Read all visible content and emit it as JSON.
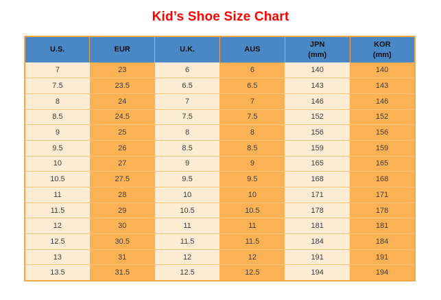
{
  "title": "Kid’s Shoe Size Chart",
  "chart_data": {
    "type": "table",
    "title": "Kid’s Shoe Size Chart",
    "columns": [
      "U.S.",
      "EUR",
      "U.K.",
      "AUS",
      "JPN (mm)",
      "KOR (mm)"
    ],
    "header_lines": [
      [
        "U.S."
      ],
      [
        "EUR"
      ],
      [
        "U.K."
      ],
      [
        "AUS"
      ],
      [
        "JPN",
        "(mm)"
      ],
      [
        "KOR",
        "(mm)"
      ]
    ],
    "rows": [
      [
        7,
        23,
        6,
        6,
        140,
        140
      ],
      [
        7.5,
        23.5,
        6.5,
        6.5,
        143,
        143
      ],
      [
        8,
        24,
        7,
        7,
        146,
        146
      ],
      [
        8.5,
        24.5,
        7.5,
        7.5,
        152,
        152
      ],
      [
        9,
        25,
        8,
        8,
        156,
        156
      ],
      [
        9.5,
        26,
        8.5,
        8.5,
        159,
        159
      ],
      [
        10,
        27,
        9,
        9,
        165,
        165
      ],
      [
        10.5,
        27.5,
        9.5,
        9.5,
        168,
        168
      ],
      [
        11,
        28,
        10,
        10,
        171,
        171
      ],
      [
        11.5,
        29,
        10.5,
        10.5,
        178,
        178
      ],
      [
        12,
        30,
        11,
        11,
        181,
        181
      ],
      [
        12.5,
        30.5,
        11.5,
        11.5,
        184,
        184
      ],
      [
        13,
        31,
        12,
        12,
        191,
        191
      ],
      [
        13.5,
        31.5,
        12.5,
        12.5,
        194,
        194
      ]
    ]
  },
  "colors": {
    "title": "#fe0000",
    "header_bg": "#4a87c5",
    "column_light": "#fdecd3",
    "column_orange": "#fbb255",
    "row_divider": "#f6c579",
    "outer_border": "#f4aa43",
    "header_separator": "#efa64a",
    "cell_text": "#3d3d3d",
    "header_text": "#111111"
  }
}
